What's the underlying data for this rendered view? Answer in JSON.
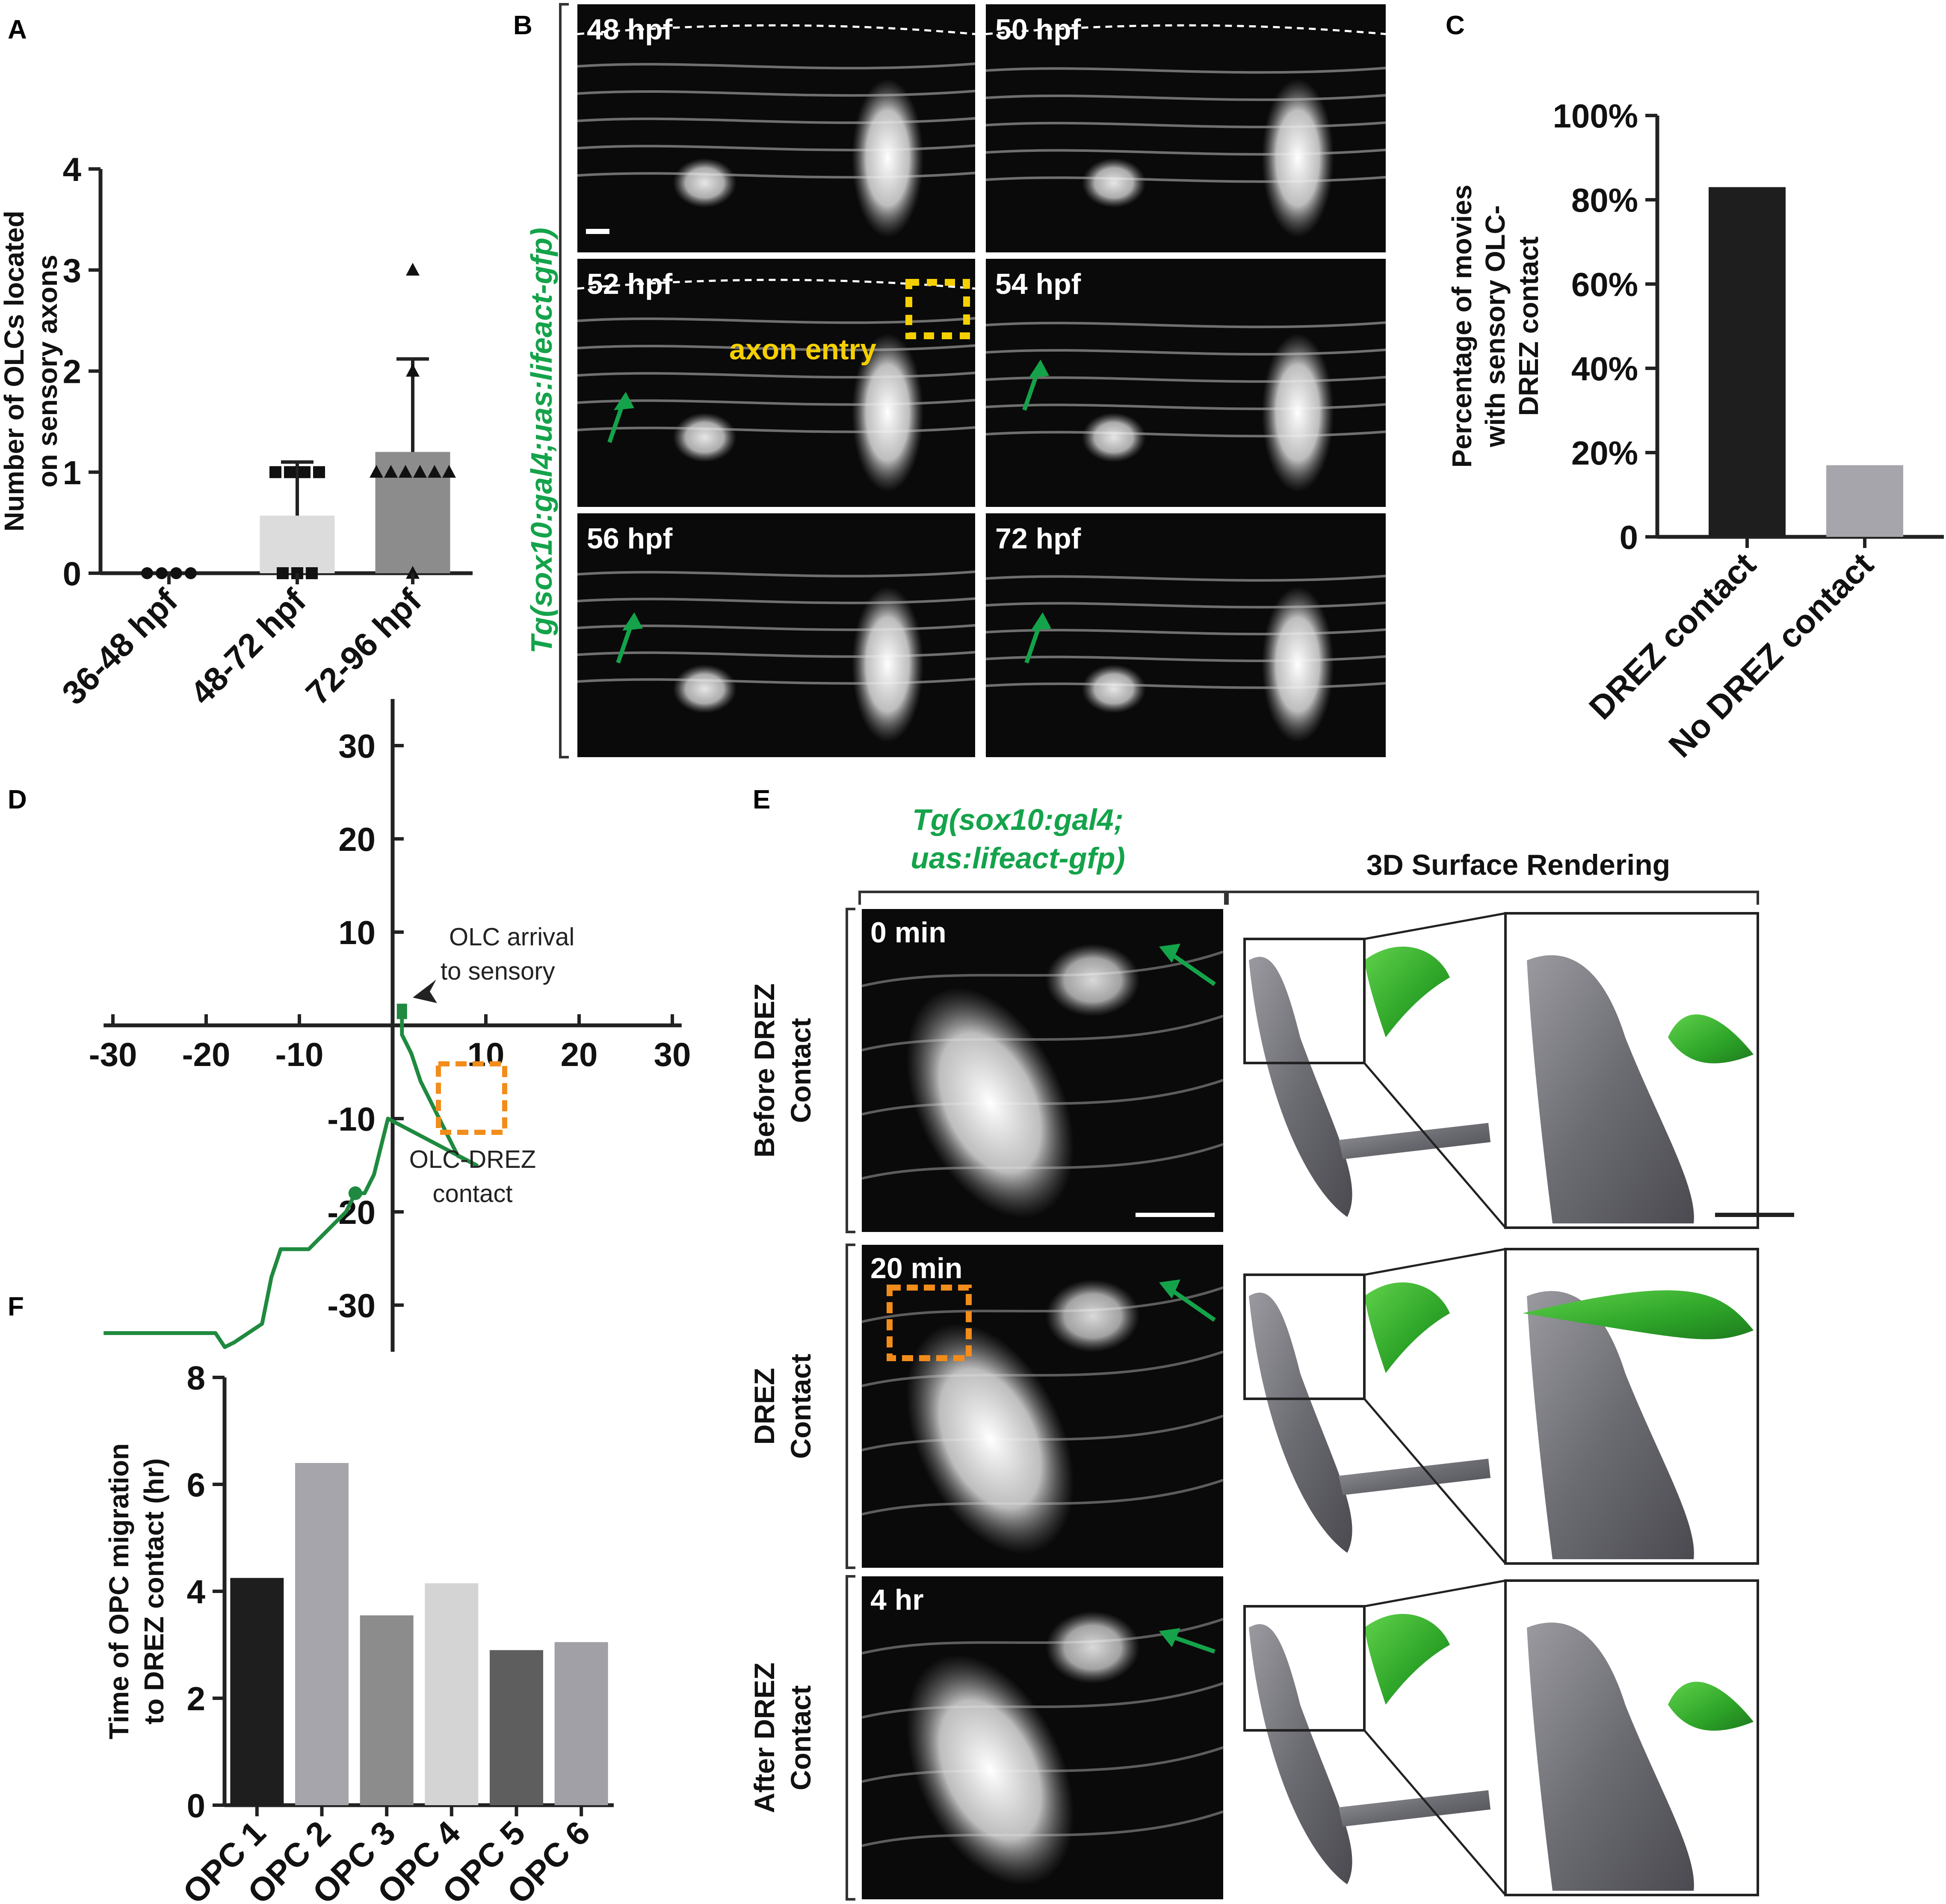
{
  "panel_labels": {
    "a": "A",
    "b": "B",
    "c": "C",
    "d": "D",
    "e": "E",
    "f": "F"
  },
  "colors": {
    "green": "#14a34a",
    "orange": "#f28c1b",
    "yellow": "#f5d000",
    "track": "#1f8a3f"
  },
  "panel_b": {
    "transgene": "Tg(sox10:gal4;uas:lifeact-gfp)",
    "timepoints": [
      "48 hpf",
      "50 hpf",
      "52 hpf",
      "54 hpf",
      "56 hpf",
      "72 hpf"
    ],
    "axon_entry_label": "axon entry"
  },
  "panel_d": {
    "arrival_label_1": "OLC arrival",
    "arrival_label_2": "to sensory",
    "contact_label_1": "OLC-DREZ",
    "contact_label_2": "contact",
    "x_ticks": [
      "-30",
      "-20",
      "-10",
      "10",
      "20",
      "30"
    ],
    "y_ticks": [
      "30",
      "20",
      "10",
      "-10",
      "-20",
      "-30"
    ]
  },
  "panel_e": {
    "transgene_line1": "Tg(sox10:gal4;",
    "transgene_line2": "uas:lifeact-gfp)",
    "render_header": "3D Surface Rendering",
    "rows": [
      {
        "time": "0 min",
        "label1": "Before DREZ",
        "label2": "Contact"
      },
      {
        "time": "20 min",
        "label1": "DREZ",
        "label2": "Contact"
      },
      {
        "time": "4 hr",
        "label1": "After DREZ",
        "label2": "Contact"
      }
    ]
  },
  "chart_data": [
    {
      "panel": "A",
      "type": "bar",
      "categories": [
        "36-48 hpf",
        "48-72 hpf",
        "72-96 hpf"
      ],
      "values": [
        0,
        0.57,
        1.2
      ],
      "error_upper": [
        0,
        1.1,
        2.12
      ],
      "points": [
        [
          0,
          0,
          0,
          0
        ],
        [
          1,
          1,
          1,
          1,
          0,
          0,
          0
        ],
        [
          3,
          2,
          1,
          1,
          1,
          1,
          1,
          1,
          0
        ]
      ],
      "ylabel_1": "Number of OLCs located",
      "ylabel_2": "on sensory axons",
      "ylim": [
        0,
        4
      ],
      "yticks": [
        "0",
        "1",
        "2",
        "3",
        "4"
      ],
      "bar_colors": [
        "#ffffff",
        "#dcdcdc",
        "#8c8c8c"
      ]
    },
    {
      "panel": "C",
      "type": "bar",
      "categories": [
        "DREZ contact",
        "No DREZ contact"
      ],
      "values": [
        83,
        17
      ],
      "ylabel_1": "Percentage of movies",
      "ylabel_2": "with sensory OLC-",
      "ylabel_3": "DREZ contact",
      "ylim": [
        0,
        100
      ],
      "yticks": [
        "0",
        "20%",
        "40%",
        "60%",
        "80%",
        "100%"
      ],
      "bar_colors": [
        "#1e1e1e",
        "#a5a5ab"
      ]
    },
    {
      "panel": "D",
      "type": "line",
      "x": [
        -31,
        -26,
        -21,
        -19,
        -18,
        -17,
        -14,
        -13,
        -12,
        -9,
        -7,
        -5,
        -4,
        -3,
        -2,
        -1,
        -0.5,
        9,
        7,
        6,
        4,
        3,
        2,
        1,
        1,
        1,
        1
      ],
      "y": [
        -33,
        -33,
        -33,
        -33,
        -34.5,
        -34,
        -32,
        -27,
        -24,
        -24,
        -22,
        -20,
        -18,
        -18,
        -16,
        -12,
        -10,
        -15,
        -14,
        -12,
        -8,
        -6,
        -3,
        -1,
        0.5,
        1.5,
        1
      ],
      "xlim": [
        -30,
        30
      ],
      "ylim": [
        -35,
        35
      ],
      "xticks": [
        -30,
        -20,
        -10,
        10,
        20,
        30
      ],
      "yticks": [
        30,
        20,
        10,
        -10,
        -20,
        -30
      ]
    },
    {
      "panel": "F",
      "type": "bar",
      "categories": [
        "OPC 1",
        "OPC 2",
        "OPC 3",
        "OPC 4",
        "OPC 5",
        "OPC 6"
      ],
      "values": [
        4.25,
        6.4,
        3.55,
        4.15,
        2.9,
        3.05
      ],
      "ylabel_1": "Time of OPC migration",
      "ylabel_2": "to DREZ contact (hr)",
      "ylim": [
        0,
        8
      ],
      "yticks": [
        "0",
        "2",
        "4",
        "6",
        "8"
      ],
      "bar_colors": [
        "#1e1e1e",
        "#a5a5ab",
        "#8c8c8c",
        "#d4d4d4",
        "#5e5e5e",
        "#a0a0a6"
      ]
    }
  ]
}
